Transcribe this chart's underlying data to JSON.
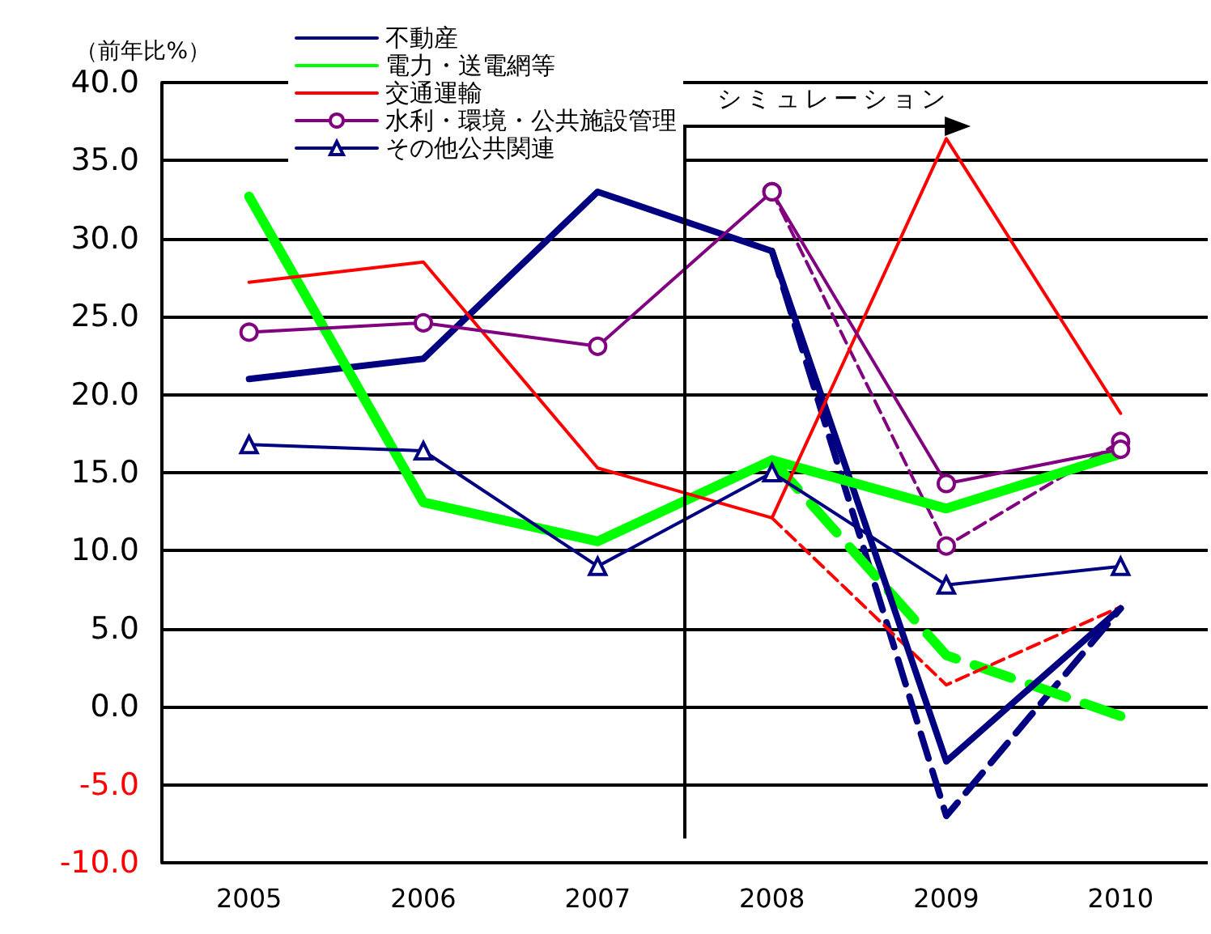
{
  "chart_data": {
    "type": "line",
    "ylabel": "（前年比%）",
    "categories": [
      "2005",
      "2006",
      "2007",
      "2008",
      "2009",
      "2010"
    ],
    "series": [
      {
        "name": "不動産",
        "color": "#000080",
        "marker": "none",
        "values": [
          21.0,
          22.3,
          33.0,
          29.2,
          -3.5,
          6.3
        ]
      },
      {
        "name": "電力・送電網等",
        "color": "#00ff00",
        "marker": "none",
        "values": [
          32.7,
          13.1,
          10.6,
          15.8,
          12.7,
          16.2
        ]
      },
      {
        "name": "交通運輸",
        "color": "#ff0000",
        "marker": "none",
        "values": [
          27.2,
          28.5,
          15.3,
          12.1,
          36.4,
          18.8
        ]
      },
      {
        "name": "水利・環境・公共施設管理",
        "color": "#800080",
        "marker": "circle",
        "values": [
          24.0,
          24.6,
          23.1,
          33.0,
          14.3,
          16.5
        ]
      },
      {
        "name": "その他公共関連",
        "color": "#000080",
        "marker": "triangle",
        "values": [
          16.8,
          16.4,
          9.0,
          15.0,
          7.8,
          9.0
        ]
      },
      {
        "color": "#000080",
        "marker": "none",
        "line_style": "dashed",
        "values": [
          null,
          null,
          null,
          29.2,
          -7.0,
          6.3
        ]
      },
      {
        "color": "#00ff00",
        "marker": "none",
        "line_style": "dashed",
        "values": [
          null,
          null,
          null,
          15.8,
          3.3,
          -0.6
        ]
      },
      {
        "color": "#ff0000",
        "marker": "none",
        "line_style": "dashed",
        "values": [
          null,
          null,
          null,
          12.1,
          1.4,
          6.4
        ]
      },
      {
        "color": "#800080",
        "marker": "circle",
        "line_style": "dashed",
        "values": [
          null,
          null,
          null,
          33.0,
          10.3,
          17.0
        ]
      }
    ],
    "ylim": [
      -10,
      40
    ],
    "yticks": [
      {
        "value": -10,
        "label": "-10.0"
      },
      {
        "value": -5,
        "label": "-5.0"
      },
      {
        "value": 0,
        "label": "0.0"
      },
      {
        "value": 5,
        "label": "5.0"
      },
      {
        "value": 10,
        "label": "10.0"
      },
      {
        "value": 15,
        "label": "15.0"
      },
      {
        "value": 20,
        "label": "20.0"
      },
      {
        "value": 25,
        "label": "25.0"
      },
      {
        "value": 30,
        "label": "30.0"
      },
      {
        "value": 35,
        "label": "35.0"
      },
      {
        "value": 40,
        "label": "40.0"
      }
    ],
    "grid": "y",
    "legend": "top",
    "line_style": "solid",
    "annotations": [
      "シミュレーション"
    ]
  }
}
